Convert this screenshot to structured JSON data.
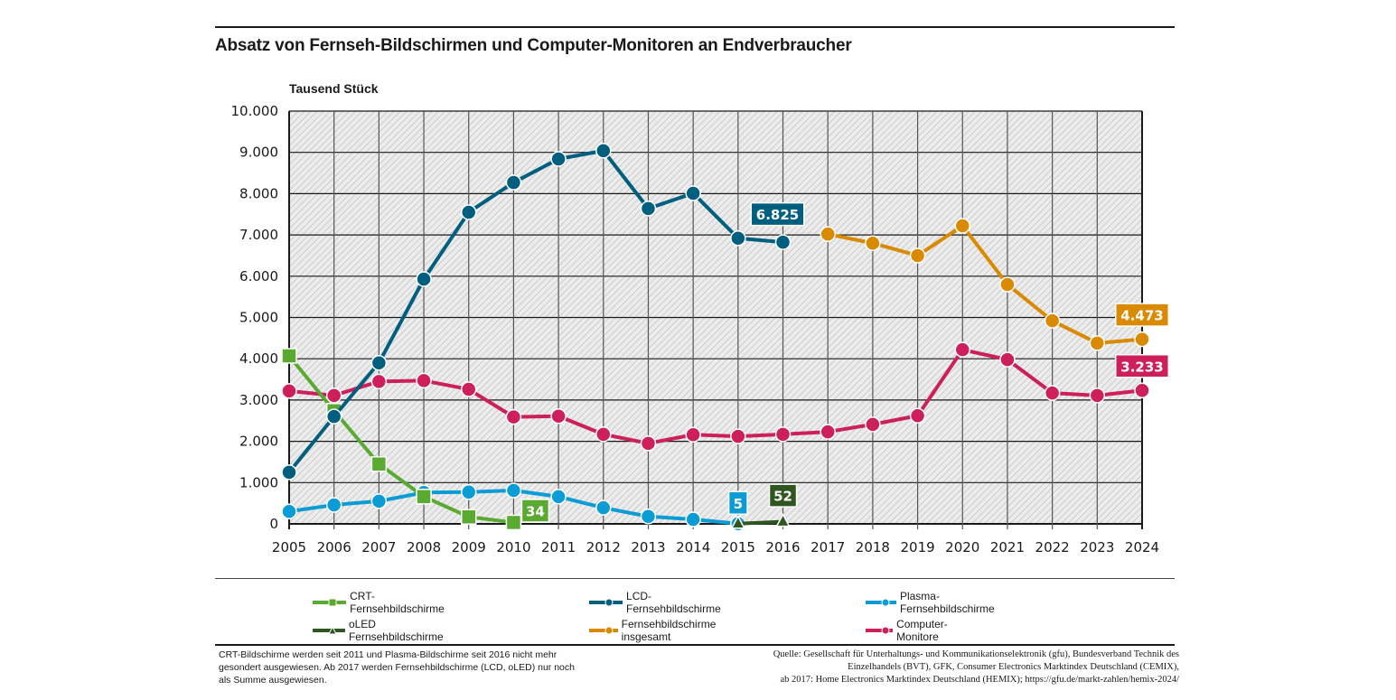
{
  "chart_data": {
    "type": "line",
    "title": "Absatz von Fernseh-Bildschirmen und Computer-Monitoren an Endverbraucher",
    "ylabel": "Tausend Stück",
    "xlabel": "",
    "ylim": [
      0,
      10000
    ],
    "yticks": [
      0,
      1000,
      2000,
      3000,
      4000,
      5000,
      6000,
      7000,
      8000,
      9000,
      10000
    ],
    "ytick_labels": [
      "0",
      "1.000",
      "2.000",
      "3.000",
      "4.000",
      "5.000",
      "6.000",
      "7.000",
      "8.000",
      "9.000",
      "10.000"
    ],
    "x": [
      "2005",
      "2006",
      "2007",
      "2008",
      "2009",
      "2010",
      "2011",
      "2012",
      "2013",
      "2014",
      "2015",
      "2016",
      "2017",
      "2018",
      "2019",
      "2020",
      "2021",
      "2022",
      "2023",
      "2024"
    ],
    "grid": true,
    "legend_position": "bottom",
    "series": [
      {
        "name": "CRT-Fernsehbildschirme",
        "color": "#5aaa32",
        "marker": "square",
        "values": [
          4070,
          2740,
          1450,
          660,
          170,
          34,
          null,
          null,
          null,
          null,
          null,
          null,
          null,
          null,
          null,
          null,
          null,
          null,
          null,
          null
        ],
        "label": {
          "index": 5,
          "text": "34"
        }
      },
      {
        "name": "LCD-Fernsehbildschirme",
        "color": "#005f7f",
        "marker": "circle",
        "values": [
          1250,
          2600,
          3900,
          5930,
          7550,
          8270,
          8840,
          9040,
          7640,
          8010,
          6920,
          6825,
          null,
          null,
          null,
          null,
          null,
          null,
          null,
          null
        ],
        "label": {
          "index": 11,
          "text": "6.825"
        }
      },
      {
        "name": "Plasma-Fernsehbildschirme",
        "color": "#0b9cd6",
        "marker": "circle",
        "values": [
          300,
          460,
          550,
          760,
          770,
          810,
          660,
          390,
          180,
          110,
          5,
          null,
          null,
          null,
          null,
          null,
          null,
          null,
          null,
          null
        ],
        "label": {
          "index": 10,
          "text": "5"
        }
      },
      {
        "name": "oLED Fernsehbildschirme",
        "color": "#2f5520",
        "marker": "triangle",
        "values": [
          null,
          null,
          null,
          null,
          null,
          null,
          null,
          null,
          null,
          null,
          5,
          52,
          null,
          null,
          null,
          null,
          null,
          null,
          null,
          null
        ],
        "label": {
          "index": 11,
          "text": "52"
        }
      },
      {
        "name": "Fernsehbildschirme insgesamt",
        "color": "#d98a00",
        "marker": "circle",
        "values": [
          null,
          null,
          null,
          null,
          null,
          null,
          null,
          null,
          null,
          null,
          null,
          null,
          7020,
          6800,
          6500,
          7220,
          5800,
          4920,
          4380,
          4473
        ],
        "label": {
          "index": 19,
          "text": "4.473"
        }
      },
      {
        "name": "Computer-Monitore",
        "color": "#cc1f5b",
        "marker": "circle",
        "values": [
          3220,
          3110,
          3450,
          3470,
          3260,
          2590,
          2610,
          2170,
          1950,
          2160,
          2120,
          2170,
          2230,
          2410,
          2620,
          4220,
          3980,
          3170,
          3110,
          3233
        ],
        "label": {
          "index": 19,
          "text": "3.233"
        }
      }
    ]
  },
  "header": {
    "title": "Absatz von Fernseh-Bildschirmen und Computer-Monitoren an Endverbraucher",
    "unit": "Tausend Stück"
  },
  "legend": [
    {
      "label": "CRT-Fernsehbildschirme",
      "color": "#5aaa32",
      "marker": "square"
    },
    {
      "label": "LCD-Fernsehbildschirme",
      "color": "#005f7f",
      "marker": "circle"
    },
    {
      "label": "Plasma-Fernsehbildschirme",
      "color": "#0b9cd6",
      "marker": "circle"
    },
    {
      "label": "oLED Fernsehbildschirme",
      "color": "#2f5520",
      "marker": "triangle"
    },
    {
      "label": "Fernsehbildschirme insgesamt",
      "color": "#d98a00",
      "marker": "circle"
    },
    {
      "label": "Computer-Monitore",
      "color": "#cc1f5b",
      "marker": "circle"
    }
  ],
  "footer": {
    "note": "CRT-Bildschirme werden seit 2011 und Plasma-Bildschirme seit 2016 nicht mehr gesondert ausgewiesen. Ab 2017 werden Fernsehbildschirme (LCD, oLED) nur noch als Summe ausgewiesen.",
    "source_line1": "Quelle: Gesellschaft für Unterhaltungs- und Kommunikationselektronik (gfu), Bundesverband Technik des",
    "source_line2": "Einzelhandels (BVT), GFK, Consumer Electronics Marktindex Deutschland (CEMIX),",
    "source_line3": "ab 2017: Home Electronics Marktindex Deutschland (HEMIX); https://gfu.de/markt-zahlen/hemix-2024/"
  }
}
